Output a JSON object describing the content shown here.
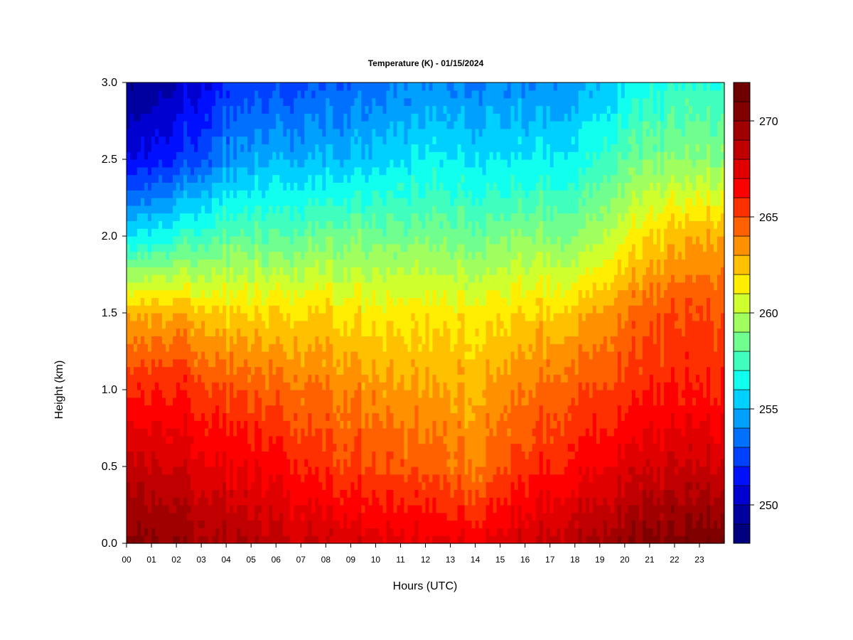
{
  "chart_data": {
    "type": "heatmap",
    "title": "Temperature (K) - 01/15/2024",
    "xlabel": "Hours (UTC)",
    "ylabel": "Height (km)",
    "x_ticks": [
      "00",
      "01",
      "02",
      "03",
      "04",
      "05",
      "06",
      "07",
      "08",
      "09",
      "10",
      "11",
      "12",
      "13",
      "14",
      "15",
      "16",
      "17",
      "18",
      "19",
      "20",
      "21",
      "22",
      "23"
    ],
    "y_ticks": [
      "0.0",
      "0.5",
      "1.0",
      "1.5",
      "2.0",
      "2.5",
      "3.0"
    ],
    "xlim": [
      0,
      24
    ],
    "ylim": [
      0,
      3.0
    ],
    "colorbar": {
      "ticks": [
        "250",
        "255",
        "260",
        "265",
        "270"
      ],
      "range": [
        248,
        272
      ],
      "levels": 24,
      "colors": [
        "#00007f",
        "#0000a0",
        "#0000d0",
        "#0010ff",
        "#0040ff",
        "#0070ff",
        "#00a0ff",
        "#00d0ff",
        "#10ffee",
        "#40ffbe",
        "#70ff8e",
        "#a0ff5e",
        "#d0ff2e",
        "#ffee00",
        "#ffc000",
        "#ff9000",
        "#ff6000",
        "#ff3000",
        "#ff0000",
        "#e00000",
        "#c00000",
        "#a00000",
        "#800000",
        "#700000"
      ]
    },
    "grid": false,
    "legend": "colorbar-right",
    "profiles": [
      {
        "hour": 0,
        "surface": 270.5,
        "at_0_5": 268.5,
        "at_1_0": 266,
        "at_1_5": 263,
        "at_2_0": 256,
        "at_2_5": 251,
        "at_3_0": 249
      },
      {
        "hour": 2,
        "surface": 270,
        "at_0_5": 268,
        "at_1_0": 266,
        "at_1_5": 263,
        "at_2_0": 257,
        "at_2_5": 252,
        "at_3_0": 250
      },
      {
        "hour": 4,
        "surface": 269,
        "at_0_5": 267,
        "at_1_0": 265,
        "at_1_5": 262,
        "at_2_0": 258,
        "at_2_5": 254,
        "at_3_0": 252
      },
      {
        "hour": 6,
        "surface": 268.5,
        "at_0_5": 266.5,
        "at_1_0": 264.5,
        "at_1_5": 262,
        "at_2_0": 258,
        "at_2_5": 255,
        "at_3_0": 252.5
      },
      {
        "hour": 8,
        "surface": 268,
        "at_0_5": 265.5,
        "at_1_0": 264,
        "at_1_5": 262,
        "at_2_0": 258.5,
        "at_2_5": 255,
        "at_3_0": 253
      },
      {
        "hour": 10,
        "surface": 267.5,
        "at_0_5": 265,
        "at_1_0": 263.5,
        "at_1_5": 261.5,
        "at_2_0": 258.5,
        "at_2_5": 255.5,
        "at_3_0": 253.5
      },
      {
        "hour": 12,
        "surface": 267,
        "at_0_5": 264.5,
        "at_1_0": 263,
        "at_1_5": 261.5,
        "at_2_0": 258.5,
        "at_2_5": 256,
        "at_3_0": 254
      },
      {
        "hour": 14,
        "surface": 267,
        "at_0_5": 264,
        "at_1_0": 263,
        "at_1_5": 261.5,
        "at_2_0": 258.5,
        "at_2_5": 256,
        "at_3_0": 254
      },
      {
        "hour": 16,
        "surface": 268,
        "at_0_5": 265.5,
        "at_1_0": 264,
        "at_1_5": 262,
        "at_2_0": 259,
        "at_2_5": 256,
        "at_3_0": 254
      },
      {
        "hour": 18,
        "surface": 269,
        "at_0_5": 266.5,
        "at_1_0": 265,
        "at_1_5": 262.5,
        "at_2_0": 259,
        "at_2_5": 256.5,
        "at_3_0": 254.5
      },
      {
        "hour": 20,
        "surface": 270,
        "at_0_5": 267.5,
        "at_1_0": 265.5,
        "at_1_5": 264,
        "at_2_0": 261,
        "at_2_5": 258,
        "at_3_0": 256
      },
      {
        "hour": 22,
        "surface": 270.5,
        "at_0_5": 268,
        "at_1_0": 266,
        "at_1_5": 265,
        "at_2_0": 262.5,
        "at_2_5": 259,
        "at_3_0": 257
      },
      {
        "hour": 24,
        "surface": 271,
        "at_0_5": 268,
        "at_1_0": 266,
        "at_1_5": 265,
        "at_2_0": 263,
        "at_2_5": 259,
        "at_3_0": 257
      }
    ]
  }
}
